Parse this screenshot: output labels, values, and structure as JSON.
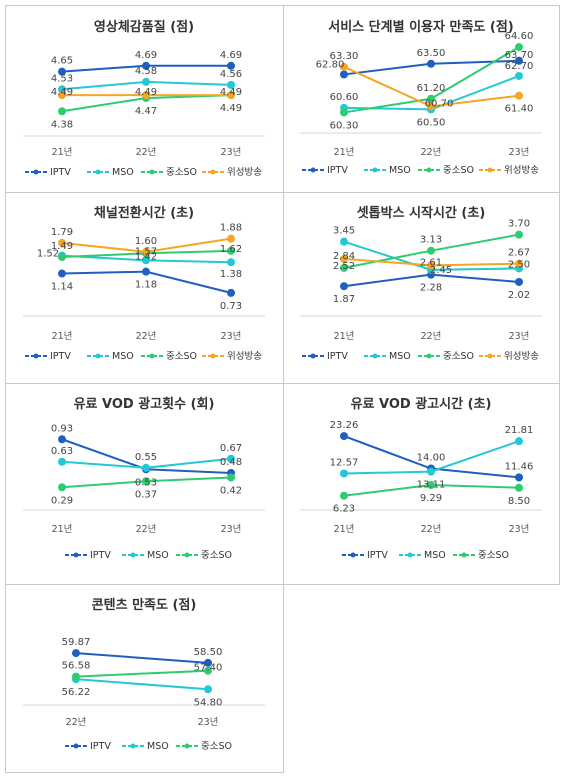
{
  "series_colors": {
    "IPTV": "#1f5fbf",
    "MSO": "#22c8d2",
    "중소SO": "#2ecc71",
    "위성방송": "#f5a623"
  },
  "chart_data": [
    {
      "type": "line",
      "title": "영상체감품질 (점)",
      "categories": [
        "21년",
        "22년",
        "23년"
      ],
      "ylim": [
        4.3,
        4.75
      ],
      "series": [
        {
          "name": "IPTV",
          "values": [
            4.65,
            4.69,
            4.69
          ]
        },
        {
          "name": "MSO",
          "values": [
            4.53,
            4.58,
            4.56
          ]
        },
        {
          "name": "중소SO",
          "values": [
            4.38,
            4.47,
            4.49
          ]
        },
        {
          "name": "위성방송",
          "values": [
            4.49,
            4.49,
            4.49
          ]
        }
      ],
      "legend": "bottom"
    },
    {
      "type": "line",
      "title": "서비스 단계별 이용자 만족도 (점)",
      "categories": [
        "21년",
        "22년",
        "23년"
      ],
      "ylim": [
        60,
        65
      ],
      "series": [
        {
          "name": "IPTV",
          "values": [
            62.8,
            63.5,
            63.7
          ]
        },
        {
          "name": "MSO",
          "values": [
            60.6,
            60.5,
            62.7
          ]
        },
        {
          "name": "중소SO",
          "values": [
            60.3,
            61.2,
            64.6
          ]
        },
        {
          "name": "위성방송",
          "values": [
            63.3,
            60.7,
            61.4
          ]
        }
      ],
      "legend": "bottom"
    },
    {
      "type": "line",
      "title": "채널전환시간 (초)",
      "categories": [
        "21년",
        "22년",
        "23년"
      ],
      "ylim": [
        0.6,
        2.0
      ],
      "series": [
        {
          "name": "IPTV",
          "values": [
            1.14,
            1.18,
            0.73
          ]
        },
        {
          "name": "MSO",
          "values": [
            1.52,
            1.42,
            1.38
          ]
        },
        {
          "name": "중소SO",
          "values": [
            1.49,
            1.57,
            1.62
          ]
        },
        {
          "name": "위성방송",
          "values": [
            1.79,
            1.6,
            1.88
          ]
        }
      ],
      "legend": "bottom"
    },
    {
      "type": "line",
      "title": "셋톱박스 시작시간 (초)",
      "categories": [
        "21년",
        "22년",
        "23년"
      ],
      "ylim": [
        1.7,
        3.9
      ],
      "series": [
        {
          "name": "IPTV",
          "values": [
            1.87,
            2.28,
            2.02
          ]
        },
        {
          "name": "MSO",
          "values": [
            3.45,
            2.45,
            2.5
          ]
        },
        {
          "name": "중소SO",
          "values": [
            2.52,
            3.13,
            3.7
          ]
        },
        {
          "name": "위성방송",
          "values": [
            2.84,
            2.61,
            2.67
          ]
        }
      ],
      "legend": "bottom"
    },
    {
      "type": "line",
      "title": "유료 VOD 광고횟수 (회)",
      "categories": [
        "21년",
        "22년",
        "23년"
      ],
      "ylim": [
        0.2,
        1.0
      ],
      "series": [
        {
          "name": "IPTV",
          "values": [
            0.93,
            0.53,
            0.48
          ]
        },
        {
          "name": "MSO",
          "values": [
            0.63,
            0.55,
            0.67
          ]
        },
        {
          "name": "중소SO",
          "values": [
            0.29,
            0.37,
            0.42
          ]
        }
      ],
      "legend": "bottom"
    },
    {
      "type": "line",
      "title": "유료 VOD 광고시간 (초)",
      "categories": [
        "21년",
        "22년",
        "23년"
      ],
      "ylim": [
        5,
        25
      ],
      "series": [
        {
          "name": "IPTV",
          "values": [
            23.26,
            14.0,
            11.46
          ]
        },
        {
          "name": "MSO",
          "values": [
            12.57,
            13.11,
            21.81
          ]
        },
        {
          "name": "중소SO",
          "values": [
            6.23,
            9.29,
            8.5
          ]
        }
      ],
      "legend": "bottom"
    },
    {
      "type": "line",
      "title": "콘텐츠 만족도 (점)",
      "categories": [
        "22년",
        "23년"
      ],
      "ylim": [
        54,
        61
      ],
      "series": [
        {
          "name": "IPTV",
          "values": [
            59.87,
            58.5
          ]
        },
        {
          "name": "MSO",
          "values": [
            56.22,
            54.8
          ]
        },
        {
          "name": "중소SO",
          "values": [
            56.58,
            57.4
          ]
        }
      ],
      "legend": "bottom"
    }
  ]
}
